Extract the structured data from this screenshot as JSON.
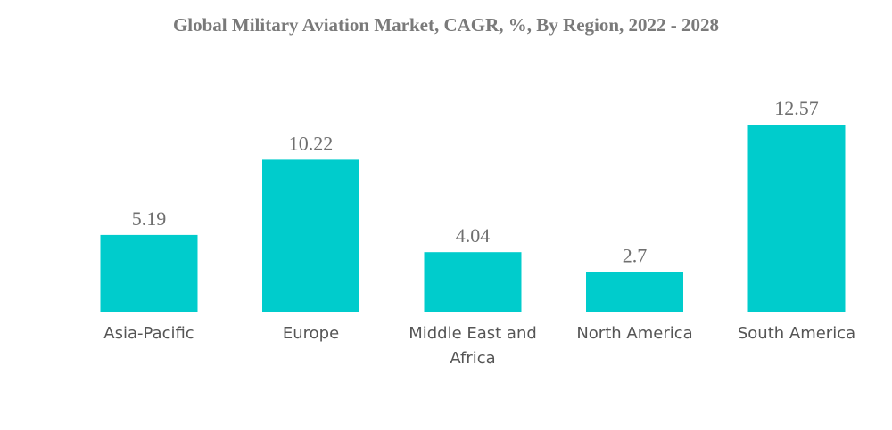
{
  "chart_data": {
    "type": "bar",
    "title": "Global Military Aviation Market, CAGR, %, By Region, 2022 - 2028",
    "categories": [
      [
        "Asia-Pacific"
      ],
      [
        "Europe"
      ],
      [
        "Middle East and",
        "Africa"
      ],
      [
        "North America"
      ],
      [
        "South America"
      ]
    ],
    "values": [
      5.19,
      10.22,
      4.04,
      2.7,
      12.57
    ],
    "ylim": [
      0,
      12.57
    ],
    "grid": false,
    "bar_color": "#00cccc"
  }
}
